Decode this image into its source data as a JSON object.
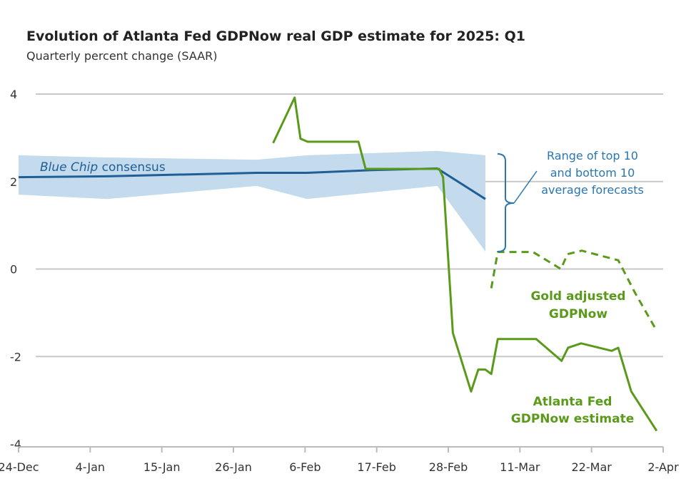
{
  "chart_data": {
    "type": "line",
    "title": "Evolution of Atlanta Fed GDPNow real GDP estimate for 2025: Q1",
    "subtitle": "Quarterly percent change (SAAR)",
    "xlabel": "",
    "ylabel": "",
    "x_unit": "days since 24-Dec",
    "xlim": [
      0,
      99
    ],
    "ylim": [
      -4,
      4
    ],
    "x_ticks": [
      {
        "day": 0,
        "label": "24-Dec"
      },
      {
        "day": 11,
        "label": "4-Jan"
      },
      {
        "day": 22,
        "label": "15-Jan"
      },
      {
        "day": 33,
        "label": "26-Jan"
      },
      {
        "day": 44,
        "label": "6-Feb"
      },
      {
        "day": 55,
        "label": "17-Feb"
      },
      {
        "day": 66,
        "label": "28-Feb"
      },
      {
        "day": 77,
        "label": "11-Mar"
      },
      {
        "day": 88,
        "label": "22-Mar"
      },
      {
        "day": 99,
        "label": "2-Apr"
      }
    ],
    "y_ticks": [
      {
        "value": 4,
        "label": "4"
      },
      {
        "value": 2,
        "label": "2"
      },
      {
        "value": 0,
        "label": "0"
      },
      {
        "value": -2,
        "label": "-2"
      },
      {
        "value": -4,
        "label": "-4"
      }
    ],
    "grid": true,
    "colors": {
      "blue": "#1f5f96",
      "band": "#c3dbec",
      "green": "#5a9a1a",
      "annotation_blue": "#2a76b0",
      "grid": "#c8c8c8"
    },
    "band": {
      "name": "Range of top 10 and bottom 10 average forecasts",
      "x": [
        0,
        13.6,
        36.6,
        44.3,
        54.2,
        64.3,
        71.7
      ],
      "upper": [
        2.6,
        2.55,
        2.5,
        2.6,
        2.65,
        2.7,
        2.6
      ],
      "lower": [
        1.7,
        1.6,
        1.9,
        1.6,
        1.75,
        1.9,
        0.4
      ]
    },
    "series": [
      {
        "name": "Blue Chip consensus",
        "label_italic": "Blue Chip",
        "label_rest": " consensus",
        "style": "solid",
        "color": "#1f5f96",
        "x": [
          0,
          13.6,
          36.6,
          44.3,
          54.2,
          64.3,
          71.7
        ],
        "y": [
          2.1,
          2.12,
          2.2,
          2.2,
          2.26,
          2.3,
          1.6
        ]
      },
      {
        "name": "Atlanta Fed GDPNow estimate",
        "label_lines": [
          "Atlanta Fed",
          "GDPNow estimate"
        ],
        "style": "solid",
        "color": "#5a9a1a",
        "x": [
          39.1,
          42.4,
          43.3,
          44.4,
          52.2,
          53.3,
          64.6,
          65.2,
          66.7,
          69.5,
          70.6,
          71.7,
          72.6,
          73.6,
          79.5,
          83.4,
          84.4,
          86.4,
          91.1,
          92.1,
          94.1,
          98
        ],
        "y": [
          2.88,
          3.92,
          2.98,
          2.91,
          2.91,
          2.29,
          2.29,
          2.1,
          -1.46,
          -2.8,
          -2.3,
          -2.3,
          -2.4,
          -1.6,
          -1.6,
          -2.1,
          -1.8,
          -1.7,
          -1.87,
          -1.8,
          -2.8,
          -3.7
        ]
      },
      {
        "name": "Gold adjusted GDPNow",
        "label_lines": [
          "Gold adjusted",
          "GDPNow"
        ],
        "style": "dashed",
        "color": "#5a9a1a",
        "x": [
          72.6,
          73.6,
          79,
          83.3,
          84.3,
          86.5,
          92.1,
          94.7,
          98
        ],
        "y": [
          -0.44,
          0.39,
          0.39,
          0,
          0.34,
          0.42,
          0.2,
          -0.55,
          -1.41
        ]
      }
    ],
    "annotations": {
      "range_lines": [
        "Range of top 10",
        "and bottom 10",
        "average forecasts"
      ]
    }
  }
}
